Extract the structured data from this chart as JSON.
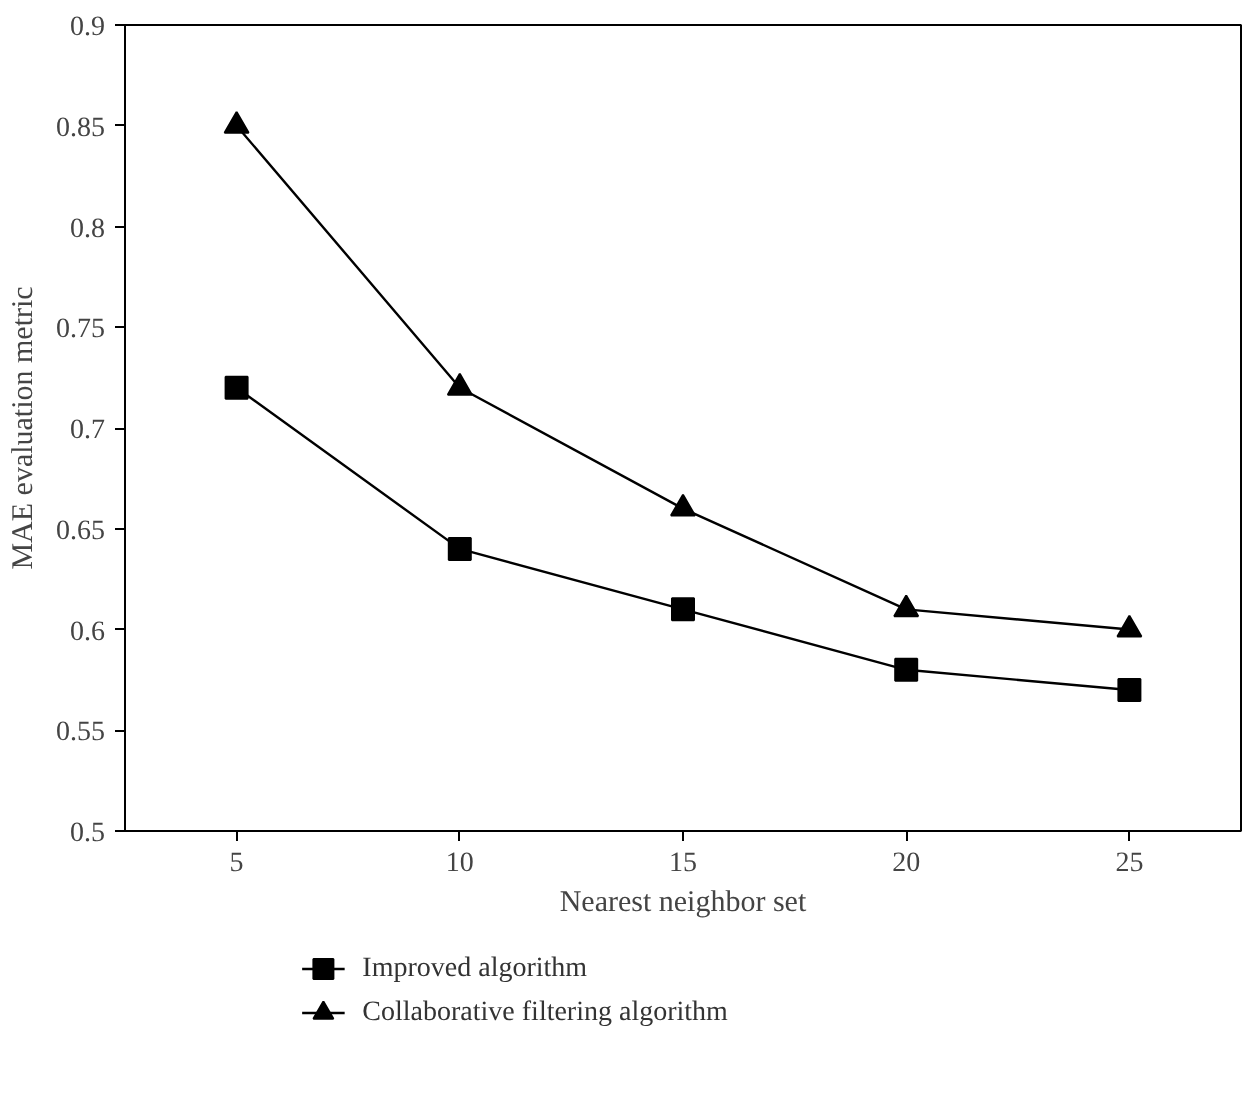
{
  "chart_data": {
    "type": "line",
    "xlabel": "Nearest neighbor set",
    "ylabel": "MAE evaluation metric",
    "x": [
      5,
      10,
      15,
      20,
      25
    ],
    "xlim": [
      2.5,
      27.5
    ],
    "xticks": [
      5,
      10,
      15,
      20,
      25
    ],
    "ylim": [
      0.5,
      0.9
    ],
    "yticks": [
      0.5,
      0.55,
      0.6,
      0.65,
      0.7,
      0.75,
      0.8,
      0.85,
      0.9
    ],
    "series": [
      {
        "name": "Improved algorithm",
        "color": "#000000",
        "marker": "square",
        "values": [
          0.72,
          0.64,
          0.61,
          0.58,
          0.57
        ]
      },
      {
        "name": "Collaborative filtering algorithm",
        "color": "#000000",
        "marker": "triangle",
        "values": [
          0.85,
          0.72,
          0.66,
          0.61,
          0.6
        ]
      }
    ],
    "grid": false,
    "legend": "bottom",
    "line_style": "solid"
  }
}
